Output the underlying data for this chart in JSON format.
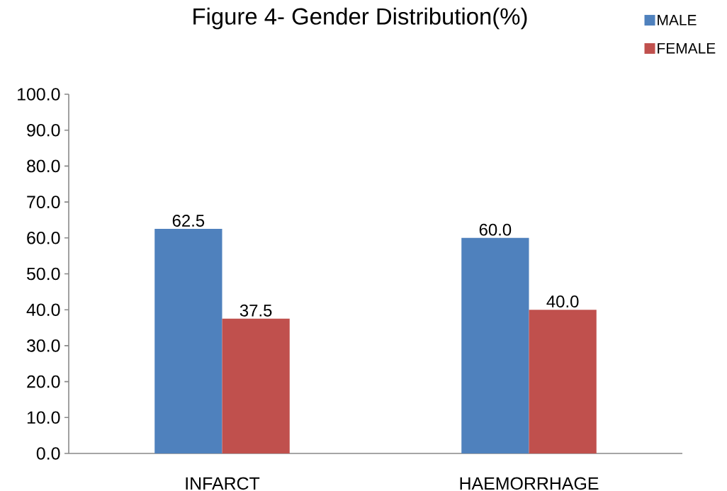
{
  "chart_data": {
    "type": "bar",
    "title": "Figure 4- Gender Distribution(%)",
    "categories": [
      "INFARCT",
      "HAEMORRHAGE"
    ],
    "series": [
      {
        "name": "MALE",
        "color": "#4f81bd",
        "values": [
          62.5,
          60.0
        ],
        "value_labels": [
          "62.5",
          "60.0"
        ]
      },
      {
        "name": "FEMALE",
        "color": "#c0504d",
        "values": [
          37.5,
          40.0
        ],
        "value_labels": [
          "37.5",
          "40.0"
        ]
      }
    ],
    "ylim": [
      0,
      100
    ],
    "yticks": [
      {
        "value": 0,
        "label": "0.0"
      },
      {
        "value": 10,
        "label": "10.0"
      },
      {
        "value": 20,
        "label": "20.0"
      },
      {
        "value": 30,
        "label": "30.0"
      },
      {
        "value": 40,
        "label": "40.0"
      },
      {
        "value": 50,
        "label": "50.0"
      },
      {
        "value": 60,
        "label": "60.0"
      },
      {
        "value": 70,
        "label": "70.0"
      },
      {
        "value": 80,
        "label": "80.0"
      },
      {
        "value": 90,
        "label": "90.0"
      },
      {
        "value": 100,
        "label": "100.0"
      }
    ],
    "legend": "top right"
  }
}
